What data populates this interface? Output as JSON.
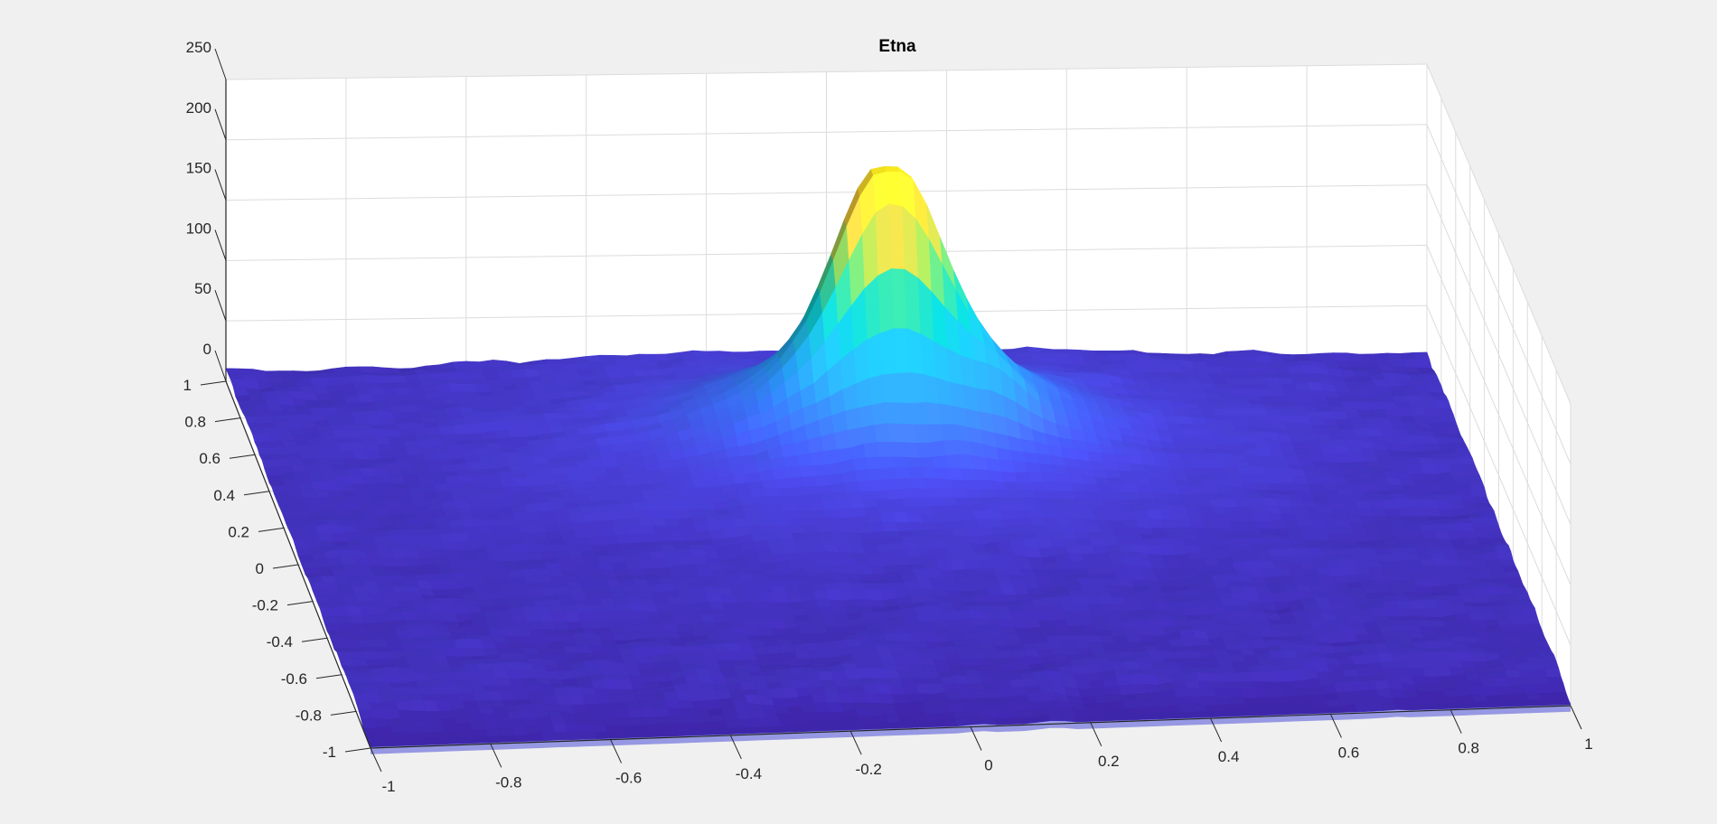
{
  "chart_data": {
    "type": "surface",
    "title": "Etna",
    "xlabel": "",
    "ylabel": "",
    "zlabel": "",
    "xlim": [
      -1,
      1
    ],
    "ylim": [
      -1,
      1
    ],
    "zlim": [
      0,
      250
    ],
    "x_ticks": [
      "-1",
      "-0.8",
      "-0.6",
      "-0.4",
      "-0.2",
      "0",
      "0.2",
      "0.4",
      "0.6",
      "0.8",
      "1"
    ],
    "y_ticks": [
      "-1",
      "-0.8",
      "-0.6",
      "-0.4",
      "-0.2",
      "0",
      "0.2",
      "0.4",
      "0.6",
      "0.8",
      "1"
    ],
    "z_ticks": [
      "0",
      "50",
      "100",
      "150",
      "200",
      "250"
    ],
    "grid": true,
    "colormap": "parula",
    "colormap_stops": [
      "#3e26a8",
      "#4a45e0",
      "#3c6df7",
      "#2a91f2",
      "#1eaad8",
      "#0dbbbd",
      "#3cc58a",
      "#98c650",
      "#e4bb3a",
      "#fbd32d",
      "#f9fb14"
    ],
    "peak": {
      "x": 0.05,
      "y": 0.55,
      "z": 245
    },
    "crater": true,
    "base_elevation": {
      "min": 0,
      "max": 40
    }
  }
}
